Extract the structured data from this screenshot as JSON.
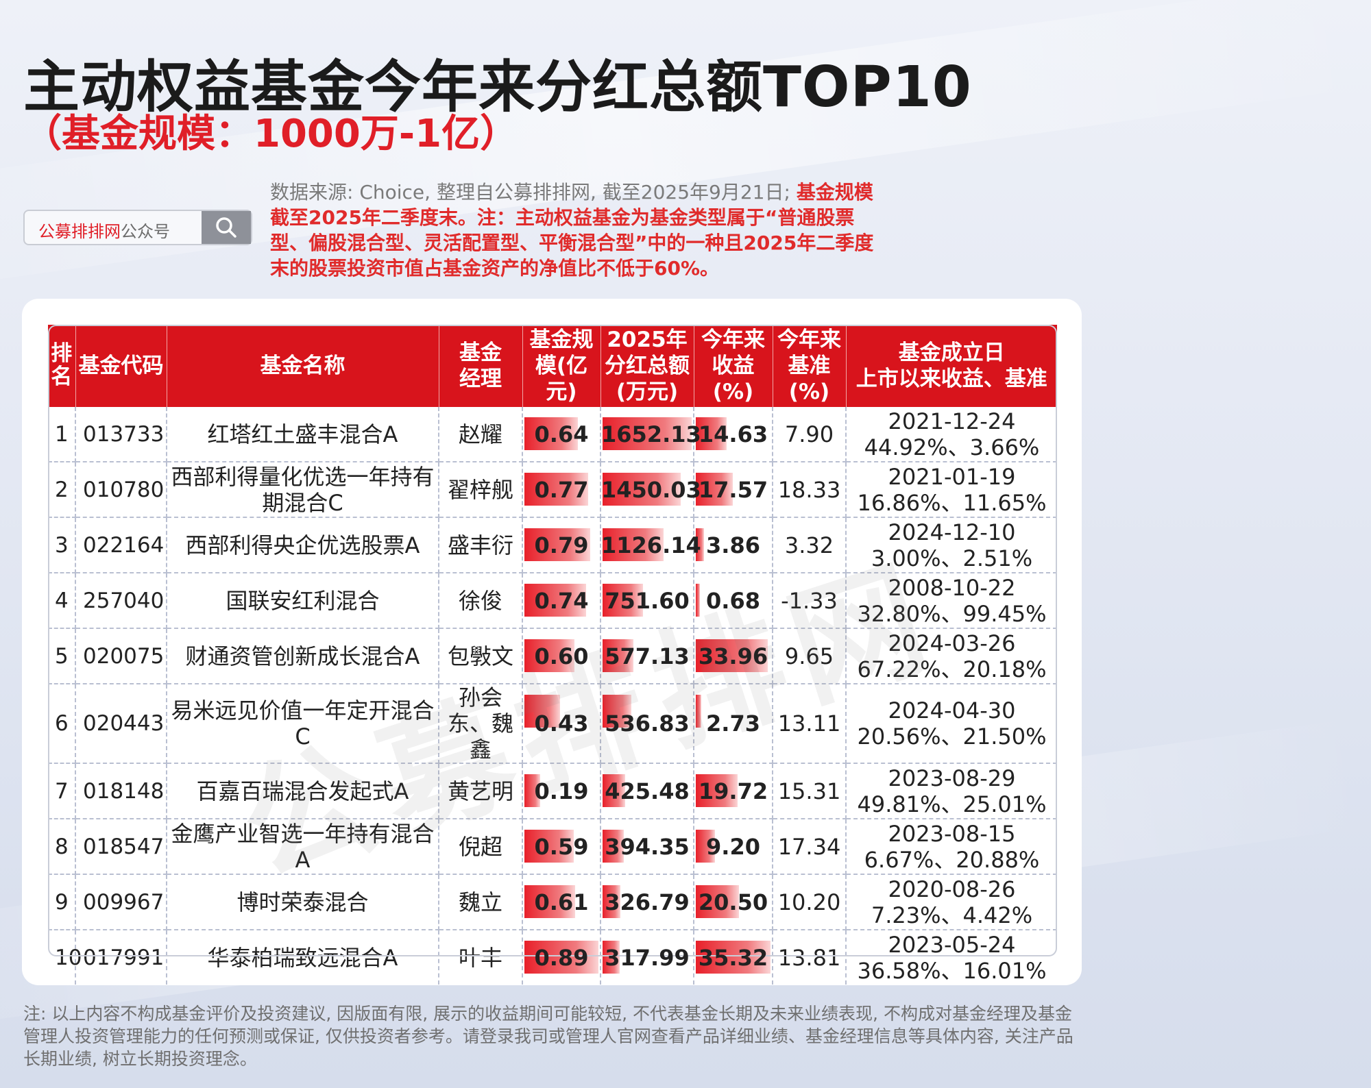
{
  "title": "主动权益基金今年来分红总额TOP10",
  "subtitle": "（基金规模：1000万-1亿）",
  "source_note": {
    "gray": "数据来源: Choice, 整理自公募排排网, 截至2025年9月21日; ",
    "red": "基金规模截至2025年二季度末。注：主动权益基金为基金类型属于“普通股票型、偏股混合型、灵活配置型、平衡混合型”中的一种且2025年二季度末的股票投资市值占基金资产的净值比不低于60%。"
  },
  "search": {
    "brand": "公募排排网",
    "suffix": "公众号",
    "icon": "search-icon"
  },
  "table": {
    "headers": [
      "排名",
      "基金代码",
      "基金名称",
      "基金经理",
      "基金规模(亿元)",
      "2025年分红总额(万元)",
      "今年来收益(%)",
      "今年来基准(%)",
      "基金成立日\n上市以来收益、基准"
    ],
    "rows": [
      {
        "rank": "1",
        "code": "013733",
        "name": "红塔红土盛丰混合A",
        "manager": "赵耀",
        "scale": "0.64",
        "dividend": "1652.13",
        "ytd": "14.63",
        "bench": "7.90",
        "date": "2021-12-24",
        "since": "44.92%、3.66%"
      },
      {
        "rank": "2",
        "code": "010780",
        "name": "西部利得量化优选一年持有期混合C",
        "manager": "翟梓舰",
        "scale": "0.77",
        "dividend": "1450.03",
        "ytd": "17.57",
        "bench": "18.33",
        "date": "2021-01-19",
        "since": "16.86%、11.65%"
      },
      {
        "rank": "3",
        "code": "022164",
        "name": "西部利得央企优选股票A",
        "manager": "盛丰衍",
        "scale": "0.79",
        "dividend": "1126.14",
        "ytd": "3.86",
        "bench": "3.32",
        "date": "2024-12-10",
        "since": "3.00%、2.51%"
      },
      {
        "rank": "4",
        "code": "257040",
        "name": "国联安红利混合",
        "manager": "徐俊",
        "scale": "0.74",
        "dividend": "751.60",
        "ytd": "0.68",
        "bench": "-1.33",
        "date": "2008-10-22",
        "since": "32.80%、99.45%"
      },
      {
        "rank": "5",
        "code": "020075",
        "name": "财通资管创新成长混合A",
        "manager": "包斅文",
        "scale": "0.60",
        "dividend": "577.13",
        "ytd": "33.96",
        "bench": "9.65",
        "date": "2024-03-26",
        "since": "67.22%、20.18%"
      },
      {
        "rank": "6",
        "code": "020443",
        "name": "易米远见价值一年定开混合C",
        "manager": "孙会东、魏鑫",
        "scale": "0.43",
        "dividend": "536.83",
        "ytd": "2.73",
        "bench": "13.11",
        "date": "2024-04-30",
        "since": "20.56%、21.50%"
      },
      {
        "rank": "7",
        "code": "018148",
        "name": "百嘉百瑞混合发起式A",
        "manager": "黄艺明",
        "scale": "0.19",
        "dividend": "425.48",
        "ytd": "19.72",
        "bench": "15.31",
        "date": "2023-08-29",
        "since": "49.81%、25.01%"
      },
      {
        "rank": "8",
        "code": "018547",
        "name": "金鹰产业智选一年持有混合A",
        "manager": "倪超",
        "scale": "0.59",
        "dividend": "394.35",
        "ytd": "9.20",
        "bench": "17.34",
        "date": "2023-08-15",
        "since": "6.67%、20.88%"
      },
      {
        "rank": "9",
        "code": "009967",
        "name": "博时荣泰混合",
        "manager": "魏立",
        "scale": "0.61",
        "dividend": "326.79",
        "ytd": "20.50",
        "bench": "10.20",
        "date": "2020-08-26",
        "since": "7.23%、4.42%"
      },
      {
        "rank": "10",
        "code": "017991",
        "name": "华泰柏瑞致远混合A",
        "manager": "叶丰",
        "scale": "0.89",
        "dividend": "317.99",
        "ytd": "35.32",
        "bench": "13.81",
        "date": "2023-05-24",
        "since": "36.58%、16.01%"
      }
    ]
  },
  "watermark": "公募排排网",
  "footnote": "注: 以上内容不构成基金评价及投资建议, 因版面有限, 展示的收益期间可能较短, 不代表基金长期及未来业绩表现, 不构成对基金经理及基金管理人投资管理能力的任何预测或保证, 仅供投资者参考。请登录我司或管理人官网查看产品详细业绩、基金经理信息等具体内容, 关注产品长期业绩, 树立长期投资理念。",
  "colors": {
    "accent_red": "#d8141c",
    "title": "#1b1b1b",
    "subtitle_red": "#e01f28"
  }
}
